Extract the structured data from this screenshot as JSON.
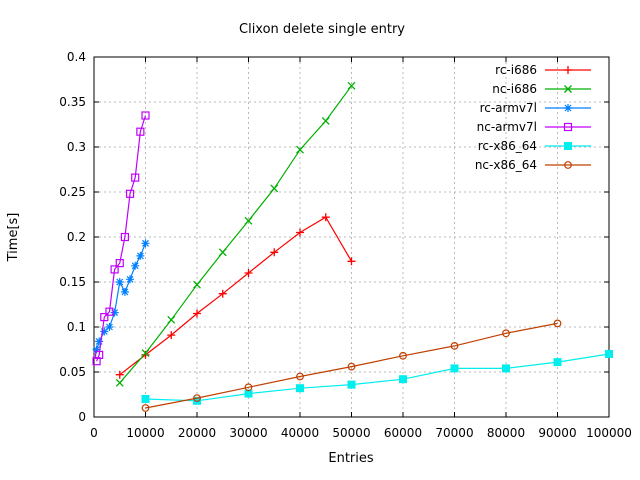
{
  "chart_data": {
    "type": "line",
    "title": "Clixon delete single entry",
    "xlabel": "Entries",
    "ylabel": "Time[s]",
    "xlim": [
      0,
      100000
    ],
    "ylim": [
      0,
      0.4
    ],
    "grid": true,
    "legend_position": "top-right-inside",
    "xticks": {
      "values": [
        0,
        10000,
        20000,
        30000,
        40000,
        50000,
        60000,
        70000,
        80000,
        90000,
        100000
      ],
      "labels": [
        "0",
        "10000",
        "20000",
        "30000",
        "40000",
        "50000",
        "60000",
        "70000",
        "80000",
        "90000",
        "100000"
      ]
    },
    "yticks": {
      "values": [
        0,
        0.05,
        0.1,
        0.15,
        0.2,
        0.25,
        0.3,
        0.35,
        0.4
      ],
      "labels": [
        "0",
        "0.05",
        "0.1",
        "0.15",
        "0.2",
        "0.25",
        "0.3",
        "0.35",
        "0.4"
      ]
    },
    "series": [
      {
        "name": "rc-i686",
        "color": "#ff0000",
        "marker": "plus",
        "x": [
          5000,
          10000,
          15000,
          20000,
          25000,
          30000,
          35000,
          40000,
          45000,
          50000
        ],
        "y": [
          0.047,
          0.069,
          0.091,
          0.115,
          0.137,
          0.16,
          0.183,
          0.205,
          0.222,
          0.173
        ]
      },
      {
        "name": "nc-i686",
        "color": "#00b000",
        "marker": "cross",
        "x": [
          5000,
          10000,
          15000,
          20000,
          25000,
          30000,
          35000,
          40000,
          45000,
          50000
        ],
        "y": [
          0.038,
          0.071,
          0.108,
          0.147,
          0.183,
          0.218,
          0.254,
          0.297,
          0.329,
          0.368
        ]
      },
      {
        "name": "rc-armv7l",
        "color": "#0080ff",
        "marker": "star",
        "x": [
          500,
          1000,
          2000,
          3000,
          4000,
          5000,
          6000,
          7000,
          8000,
          9000,
          10000
        ],
        "y": [
          0.075,
          0.084,
          0.095,
          0.1,
          0.116,
          0.15,
          0.139,
          0.153,
          0.168,
          0.179,
          0.193
        ]
      },
      {
        "name": "nc-armv7l",
        "color": "#c000ff",
        "marker": "open-square",
        "x": [
          500,
          1000,
          2000,
          3000,
          4000,
          5000,
          6000,
          7000,
          8000,
          9000,
          10000
        ],
        "y": [
          0.062,
          0.069,
          0.111,
          0.117,
          0.164,
          0.171,
          0.2,
          0.248,
          0.266,
          0.317,
          0.335
        ]
      },
      {
        "name": "rc-x86_64",
        "color": "#00eeee",
        "marker": "filled-square",
        "x": [
          10000,
          20000,
          30000,
          40000,
          50000,
          60000,
          70000,
          80000,
          90000,
          100000
        ],
        "y": [
          0.02,
          0.018,
          0.026,
          0.032,
          0.036,
          0.042,
          0.054,
          0.054,
          0.061,
          0.07
        ]
      },
      {
        "name": "nc-x86_64",
        "color": "#c04000",
        "marker": "open-circle",
        "x": [
          10000,
          20000,
          30000,
          40000,
          50000,
          60000,
          70000,
          80000,
          90000
        ],
        "y": [
          0.01,
          0.021,
          0.033,
          0.045,
          0.056,
          0.068,
          0.079,
          0.093,
          0.104
        ]
      }
    ]
  },
  "colors": {
    "background": "#ffffff",
    "grid": "#b8b8b8",
    "axis": "#000000",
    "text": "#000000"
  }
}
